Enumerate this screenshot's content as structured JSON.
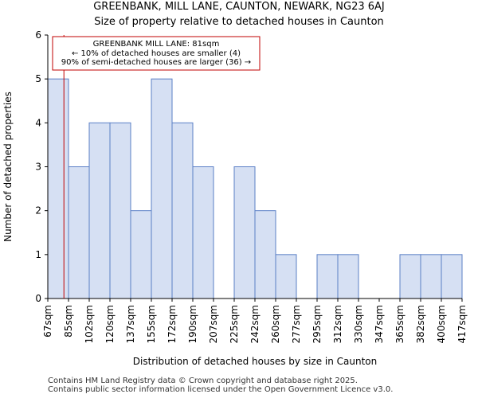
{
  "header": {
    "title": "GREENBANK, MILL LANE, CAUNTON, NEWARK, NG23 6AJ",
    "subtitle": "Size of property relative to detached houses in Caunton"
  },
  "footer": {
    "line1": "Contains HM Land Registry data © Crown copyright and database right 2025.",
    "line2": "Contains public sector information licensed under the Open Government Licence v3.0."
  },
  "colors": {
    "bar_fill": "#d6e0f3",
    "bar_stroke": "#5b7fc6",
    "marker": "#c00000",
    "annotation_border": "#c00000"
  },
  "chart_data": {
    "type": "bar",
    "xlabel": "Distribution of detached houses by size in Caunton",
    "ylabel": "Number of detached properties",
    "ylim": [
      0,
      6
    ],
    "yticks": [
      0,
      1,
      2,
      3,
      4,
      5,
      6
    ],
    "bin_edges": [
      67,
      85,
      102,
      120,
      137,
      155,
      172,
      190,
      207,
      225,
      242,
      260,
      277,
      295,
      312,
      330,
      347,
      365,
      382,
      400,
      417
    ],
    "tick_labels": [
      "67sqm",
      "85sqm",
      "102sqm",
      "120sqm",
      "137sqm",
      "155sqm",
      "172sqm",
      "190sqm",
      "207sqm",
      "225sqm",
      "242sqm",
      "260sqm",
      "277sqm",
      "295sqm",
      "312sqm",
      "330sqm",
      "347sqm",
      "365sqm",
      "382sqm",
      "400sqm",
      "417sqm"
    ],
    "values": [
      5,
      3,
      4,
      4,
      2,
      5,
      4,
      3,
      0,
      3,
      2,
      1,
      0,
      1,
      1,
      0,
      0,
      1,
      1,
      1
    ],
    "marker_value": 81,
    "annotation": {
      "line1": "GREENBANK MILL LANE: 81sqm",
      "line2": "← 10% of detached houses are smaller (4)",
      "line3": "90% of semi-detached houses are larger (36) →"
    },
    "grid": false
  }
}
